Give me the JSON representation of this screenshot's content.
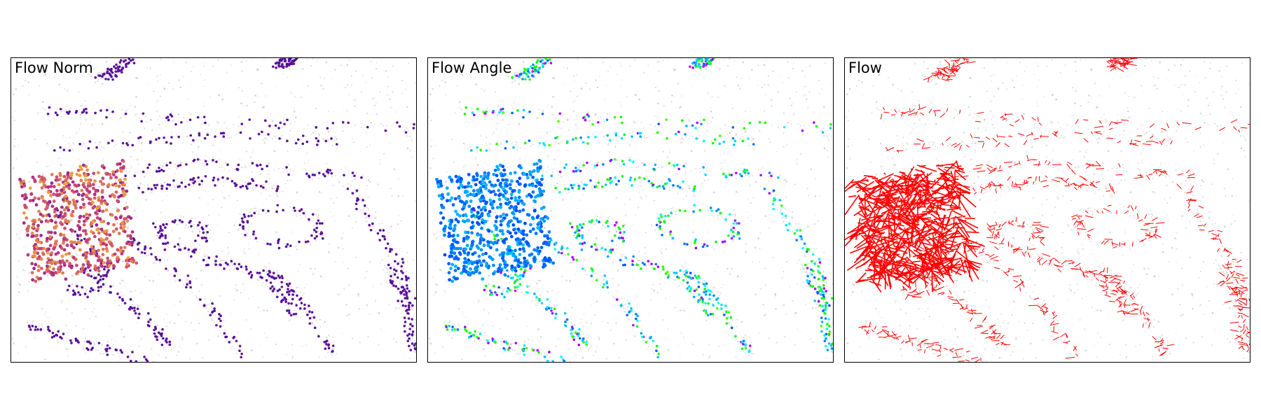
{
  "figure": {
    "panels": [
      {
        "title": "Flow Norm",
        "colormap": "plasma",
        "icon": "scatter-plot-icon"
      },
      {
        "title": "Flow Angle",
        "colormap": "hsv",
        "icon": "scatter-plot-icon"
      },
      {
        "title": "Flow",
        "arrow_color": "#ff0000",
        "icon": "quiver-plot-icon"
      }
    ]
  },
  "colors": {
    "background_points": "#b8b8b8",
    "norm_low": "#4b0b9b",
    "norm_high": "#f0a23a",
    "flow_arrow": "#ff0000"
  }
}
